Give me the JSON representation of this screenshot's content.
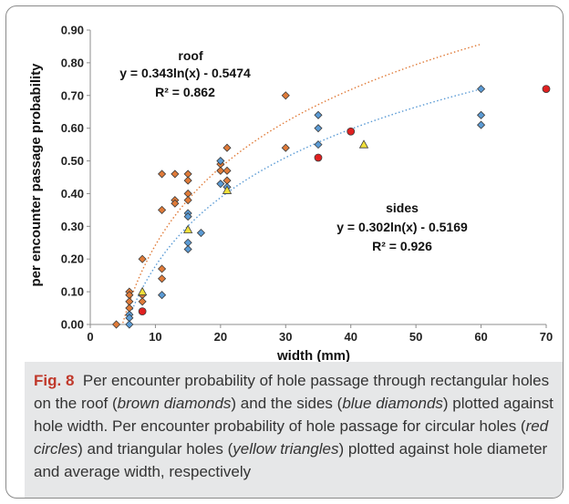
{
  "chart_data": {
    "type": "scatter",
    "xlabel": "width (mm)",
    "ylabel": "per encounter passage probability",
    "xlim": [
      0,
      70
    ],
    "ylim": [
      0,
      0.9
    ],
    "x_ticks": [
      "0",
      "10",
      "20",
      "30",
      "40",
      "50",
      "60",
      "70"
    ],
    "y_ticks": [
      "0.00",
      "0.10",
      "0.20",
      "0.30",
      "0.40",
      "0.50",
      "0.60",
      "0.70",
      "0.80",
      "0.90"
    ],
    "grid": false,
    "series": [
      {
        "name": "roof",
        "marker": "diamond",
        "color": "#e07b39",
        "points": [
          [
            4,
            0.0
          ],
          [
            6,
            0.1
          ],
          [
            6,
            0.09
          ],
          [
            6,
            0.07
          ],
          [
            6,
            0.05
          ],
          [
            8,
            0.2
          ],
          [
            8,
            0.09
          ],
          [
            8,
            0.07
          ],
          [
            11,
            0.46
          ],
          [
            11,
            0.35
          ],
          [
            11,
            0.17
          ],
          [
            11,
            0.14
          ],
          [
            13,
            0.46
          ],
          [
            13,
            0.38
          ],
          [
            13,
            0.37
          ],
          [
            15,
            0.46
          ],
          [
            15,
            0.44
          ],
          [
            15,
            0.4
          ],
          [
            15,
            0.38
          ],
          [
            20,
            0.49
          ],
          [
            20,
            0.47
          ],
          [
            21,
            0.54
          ],
          [
            21,
            0.47
          ],
          [
            21,
            0.44
          ],
          [
            30,
            0.7
          ],
          [
            30,
            0.54
          ]
        ]
      },
      {
        "name": "sides",
        "marker": "diamond",
        "color": "#5b9bd5",
        "points": [
          [
            6,
            0.03
          ],
          [
            6,
            0.02
          ],
          [
            6,
            0.0
          ],
          [
            11,
            0.09
          ],
          [
            15,
            0.34
          ],
          [
            15,
            0.33
          ],
          [
            15,
            0.25
          ],
          [
            15,
            0.23
          ],
          [
            17,
            0.28
          ],
          [
            20,
            0.5
          ],
          [
            20,
            0.43
          ],
          [
            21,
            0.42
          ],
          [
            35,
            0.64
          ],
          [
            35,
            0.6
          ],
          [
            35,
            0.55
          ],
          [
            60,
            0.72
          ],
          [
            60,
            0.64
          ],
          [
            60,
            0.61
          ]
        ]
      },
      {
        "name": "circular",
        "marker": "circle",
        "color": "#e02020",
        "points": [
          [
            8,
            0.04
          ],
          [
            35,
            0.51
          ],
          [
            40,
            0.59
          ],
          [
            70,
            0.72
          ]
        ]
      },
      {
        "name": "triangular",
        "marker": "triangle",
        "color": "#f2e03a",
        "points": [
          [
            8,
            0.1
          ],
          [
            15,
            0.29
          ],
          [
            21,
            0.41
          ],
          [
            42,
            0.55
          ]
        ]
      }
    ],
    "trendlines": [
      {
        "series": "roof",
        "a": 0.343,
        "b": -0.5474,
        "color": "#e07b39"
      },
      {
        "series": "sides",
        "a": 0.302,
        "b": -0.5169,
        "color": "#5b9bd5"
      }
    ],
    "annotations": {
      "roof": {
        "name": "roof",
        "equation": "y = 0.343ln(x) - 0.5474",
        "r2": "R² = 0.862"
      },
      "sides": {
        "name": "sides",
        "equation": "y = 0.302ln(x) - 0.5169",
        "r2": "R² = 0.926"
      }
    }
  },
  "caption": {
    "label": "Fig. 8",
    "part1": "Per encounter probability of hole passage through rectangular holes on the roof (",
    "roof_em": "brown diamonds",
    "part2": ") and the sides (",
    "sides_em": "blue diamonds",
    "part3": ") plotted against hole width. Per encounter probability of hole passage for circular holes (",
    "circles_em": "red circles",
    "part4": ") and triangular holes (",
    "triangles_em": "yellow triangles",
    "part5": ") plotted against hole diameter and average width, respectively"
  }
}
